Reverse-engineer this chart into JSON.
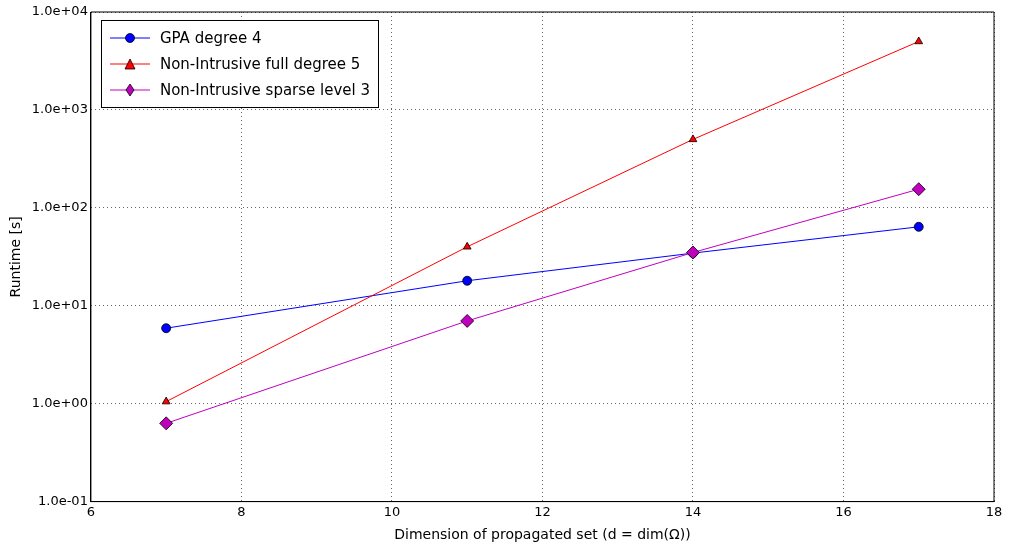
{
  "chart_data": {
    "type": "line",
    "xlabel": "Dimension of propagated set (d = dim(Ω))",
    "ylabel": "Runtime [s]",
    "x": [
      7,
      11,
      14,
      17
    ],
    "series": [
      {
        "name": "GPA degree 4",
        "color": "#0000ff",
        "marker": "circle",
        "values": [
          5.9,
          18,
          34.5,
          64
        ]
      },
      {
        "name": "Non-Intrusive full degree 5",
        "color": "#ff0000",
        "marker": "triangle",
        "values": [
          1.05,
          40,
          500,
          5000
        ]
      },
      {
        "name": "Non-Intrusive sparse level 3",
        "color": "#bf00bf",
        "marker": "diamond",
        "values": [
          0.63,
          7,
          35,
          155
        ]
      }
    ],
    "log": "y",
    "xlim": [
      6,
      18
    ],
    "xticks": [
      6,
      8,
      10,
      12,
      14,
      16,
      18
    ],
    "ylim": [
      0.1,
      10000
    ],
    "yticks": [
      {
        "value": 0.1,
        "label": "1.0e-01"
      },
      {
        "value": 1,
        "label": "1.0e+00"
      },
      {
        "value": 10,
        "label": "1.0e+01"
      },
      {
        "value": 100,
        "label": "1.0e+02"
      },
      {
        "value": 1000,
        "label": "1.0e+03"
      },
      {
        "value": 10000,
        "label": "1.0e+04"
      }
    ],
    "grid": true,
    "legend": "top left",
    "line_style": "solid"
  }
}
